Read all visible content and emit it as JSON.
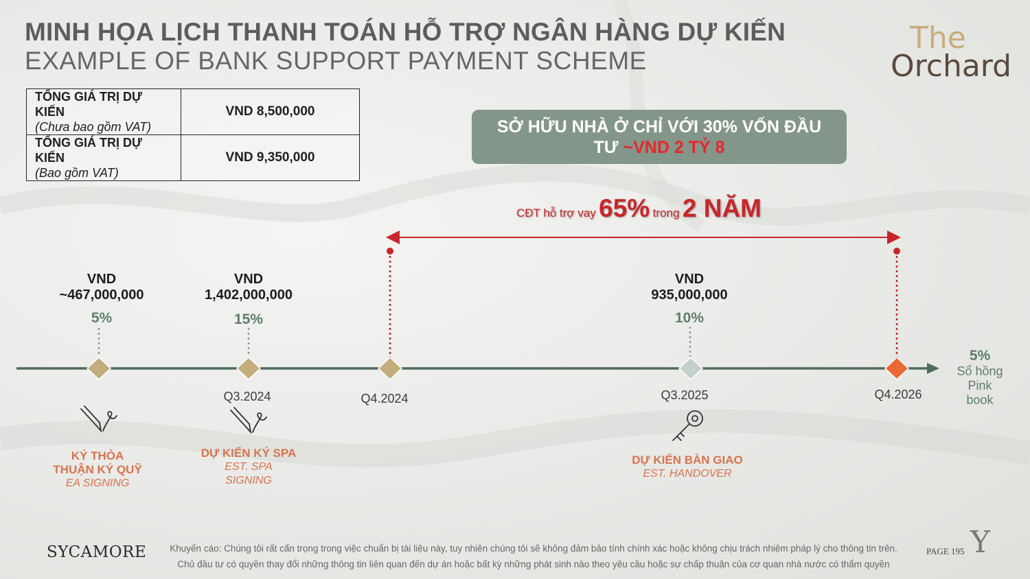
{
  "header": {
    "title_vn": "MINH HỌA LỊCH THANH TOÁN HỖ TRỢ NGÂN HÀNG DỰ KIẾN",
    "title_en": "EXAMPLE OF BANK SUPPORT PAYMENT SCHEME"
  },
  "logo": {
    "line1": "The",
    "line2": "Orchard"
  },
  "price_table": {
    "rows": [
      {
        "label": "TỔNG GIÁ TRỊ DỰ KIẾN",
        "note": "(Chưa bao gồm VAT)",
        "value": "VND 8,500,000"
      },
      {
        "label": "TỔNG GIÁ TRỊ DỰ KIẾN",
        "note": "(Bao gồm VAT)",
        "value": "VND 9,350,000"
      }
    ]
  },
  "banner": {
    "text": "SỞ HỮU NHÀ Ở CHỈ VỚI 30% VỐN ĐẦU TƯ",
    "highlight": "~VND 2 TỶ 8"
  },
  "loan_support": {
    "prefix": "CĐT hỗ trợ vay",
    "percent": "65%",
    "middle": "trong",
    "duration": "2 NĂM"
  },
  "payments": [
    {
      "currency": "VND",
      "amount": "~467,000,000",
      "percent": "5%"
    },
    {
      "currency": "VND",
      "amount": "1,402,000,000",
      "percent": "15%"
    },
    {
      "currency": "VND",
      "amount": "935,000,000",
      "percent": "10%"
    }
  ],
  "dates": [
    "Q3.2024",
    "Q4.2024",
    "Q3.2025",
    "Q4.2026"
  ],
  "milestones": [
    {
      "title_lines": [
        "KÝ THỎA",
        "THUẬN KÝ QUỸ"
      ],
      "sub_lines": [
        "EA SIGNING"
      ],
      "icon": "pen-signing-icon"
    },
    {
      "title_lines": [
        "DỰ KIẾN KÝ SPA"
      ],
      "sub_lines": [
        "EST. SPA",
        "SIGNING"
      ],
      "icon": "pen-signing-icon"
    },
    {
      "title_lines": [
        "DỰ KIẾN BÀN GIAO"
      ],
      "sub_lines": [
        "EST. HANDOVER"
      ],
      "icon": "key-icon"
    }
  ],
  "final": {
    "percent": "5%",
    "line1": "Sổ hồng",
    "line2": "Pink book"
  },
  "footer": {
    "brand": "SYCAMORE",
    "disclaimer_1": "Khuyến cáo: Chúng tôi rất cẩn trọng trong việc chuẩn bị tài liệu này, tuy nhiên chúng tôi sẽ không đảm bảo tính chính xác hoặc không chịu trách nhiệm pháp lý cho thông tin trên.",
    "disclaimer_2": "Chủ đầu tư có quyền thay đổi những thông tin liên quan đến dự án hoặc bất kỳ những phát sinh nào theo yêu cầu hoặc sự chấp thuận của cơ quan nhà nước có thẩm quyền",
    "page": "PAGE 195",
    "mark": "Y"
  },
  "colors": {
    "timeline": "#4f6b5d",
    "diamond": "#c3ad7e",
    "diamond_green": "#c4d0c9",
    "diamond_final": "#e96a34",
    "red": "#c8262a",
    "accent_green": "#5f7d6e",
    "milestone": "#d9734d",
    "banner": "#84958a"
  }
}
